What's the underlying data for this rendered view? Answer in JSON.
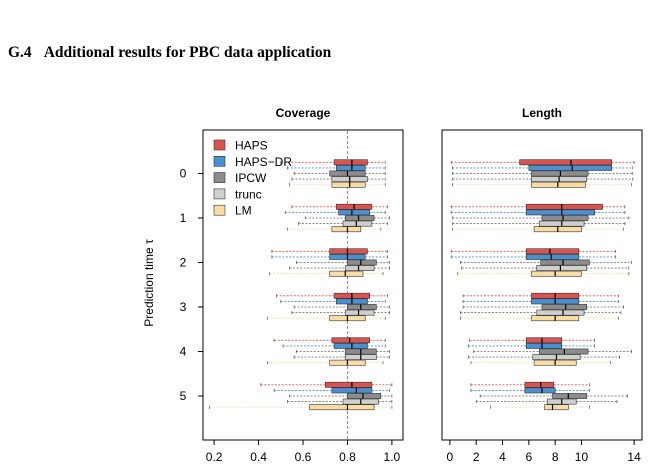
{
  "section": {
    "number": "G.4",
    "title": "Additional results for PBC data application"
  },
  "y_axis_label": "Prediction time τ",
  "colors": {
    "HAPS": "#d9534f",
    "HAPS-DR": "#4a8fcf",
    "IPCW": "#8c8c8c",
    "trunc": "#cfcfcf",
    "LM": "#f7dda3"
  },
  "chart_data": [
    {
      "type": "boxplot",
      "title": "Coverage",
      "orientation": "horizontal",
      "xlim": [
        0.15,
        1.05
      ],
      "xticks": [
        0.2,
        0.4,
        0.6,
        0.8,
        1.0
      ],
      "xtick_labels": [
        "0.2",
        "0.4",
        "0.6",
        "0.8",
        "1.0"
      ],
      "reference_line": 0.8,
      "categories": [
        "0",
        "1",
        "2",
        "3",
        "4",
        "5"
      ],
      "legend": {
        "position": "top-left",
        "entries": [
          "HAPS",
          "HAPS−DR",
          "IPCW",
          "trunc",
          "LM"
        ]
      },
      "series": [
        {
          "name": "HAPS",
          "boxes": [
            {
              "min": 0.5,
              "q1": 0.74,
              "median": 0.82,
              "q3": 0.89,
              "max": 0.97
            },
            {
              "min": 0.55,
              "q1": 0.75,
              "median": 0.83,
              "q3": 0.91,
              "max": 0.98
            },
            {
              "min": 0.46,
              "q1": 0.72,
              "median": 0.8,
              "q3": 0.89,
              "max": 0.98
            },
            {
              "min": 0.48,
              "q1": 0.74,
              "median": 0.82,
              "q3": 0.9,
              "max": 0.98
            },
            {
              "min": 0.47,
              "q1": 0.73,
              "median": 0.81,
              "q3": 0.9,
              "max": 0.97
            },
            {
              "min": 0.41,
              "q1": 0.7,
              "median": 0.82,
              "q3": 0.91,
              "max": 1.0
            }
          ]
        },
        {
          "name": "HAPS-DR",
          "boxes": [
            {
              "min": 0.53,
              "q1": 0.75,
              "median": 0.82,
              "q3": 0.88,
              "max": 0.97
            },
            {
              "min": 0.52,
              "q1": 0.76,
              "median": 0.82,
              "q3": 0.9,
              "max": 0.97
            },
            {
              "min": 0.46,
              "q1": 0.72,
              "median": 0.8,
              "q3": 0.88,
              "max": 0.98
            },
            {
              "min": 0.5,
              "q1": 0.75,
              "median": 0.82,
              "q3": 0.89,
              "max": 0.97
            },
            {
              "min": 0.51,
              "q1": 0.74,
              "median": 0.82,
              "q3": 0.89,
              "max": 0.97
            },
            {
              "min": 0.47,
              "q1": 0.73,
              "median": 0.84,
              "q3": 0.91,
              "max": 0.99
            }
          ]
        },
        {
          "name": "IPCW",
          "boxes": [
            {
              "min": 0.56,
              "q1": 0.72,
              "median": 0.8,
              "q3": 0.88,
              "max": 0.97
            },
            {
              "min": 0.61,
              "q1": 0.79,
              "median": 0.85,
              "q3": 0.92,
              "max": 0.99
            },
            {
              "min": 0.57,
              "q1": 0.8,
              "median": 0.86,
              "q3": 0.93,
              "max": 0.99
            },
            {
              "min": 0.56,
              "q1": 0.8,
              "median": 0.86,
              "q3": 0.93,
              "max": 0.99
            },
            {
              "min": 0.57,
              "q1": 0.79,
              "median": 0.86,
              "q3": 0.93,
              "max": 0.99
            },
            {
              "min": 0.54,
              "q1": 0.8,
              "median": 0.87,
              "q3": 0.95,
              "max": 1.0
            }
          ]
        },
        {
          "name": "trunc",
          "boxes": [
            {
              "min": 0.55,
              "q1": 0.73,
              "median": 0.81,
              "q3": 0.89,
              "max": 0.97
            },
            {
              "min": 0.58,
              "q1": 0.78,
              "median": 0.84,
              "q3": 0.91,
              "max": 0.98
            },
            {
              "min": 0.54,
              "q1": 0.79,
              "median": 0.85,
              "q3": 0.92,
              "max": 0.99
            },
            {
              "min": 0.55,
              "q1": 0.79,
              "median": 0.85,
              "q3": 0.92,
              "max": 0.99
            },
            {
              "min": 0.56,
              "q1": 0.79,
              "median": 0.86,
              "q3": 0.93,
              "max": 0.99
            },
            {
              "min": 0.53,
              "q1": 0.78,
              "median": 0.86,
              "q3": 0.94,
              "max": 1.0
            }
          ]
        },
        {
          "name": "LM",
          "boxes": [
            {
              "min": 0.54,
              "q1": 0.73,
              "median": 0.81,
              "q3": 0.88,
              "max": 0.97
            },
            {
              "min": 0.53,
              "q1": 0.73,
              "median": 0.8,
              "q3": 0.86,
              "max": 0.95
            },
            {
              "min": 0.45,
              "q1": 0.72,
              "median": 0.79,
              "q3": 0.87,
              "max": 0.96
            },
            {
              "min": 0.44,
              "q1": 0.72,
              "median": 0.8,
              "q3": 0.88,
              "max": 0.97
            },
            {
              "min": 0.44,
              "q1": 0.72,
              "median": 0.8,
              "q3": 0.88,
              "max": 0.96
            },
            {
              "min": 0.18,
              "q1": 0.63,
              "median": 0.8,
              "q3": 0.92,
              "max": 1.0
            }
          ]
        }
      ]
    },
    {
      "type": "boxplot",
      "title": "Length",
      "orientation": "horizontal",
      "xlim": [
        -0.6,
        14.6
      ],
      "xticks": [
        0,
        2,
        4,
        6,
        8,
        10,
        14
      ],
      "xtick_labels": [
        "0",
        "2",
        "4",
        "6",
        "8",
        "10",
        "14"
      ],
      "categories": [
        "0",
        "1",
        "2",
        "3",
        "4",
        "5"
      ],
      "series": [
        {
          "name": "HAPS",
          "boxes": [
            {
              "min": 0.1,
              "q1": 5.3,
              "median": 9.2,
              "q3": 12.3,
              "max": 14.0
            },
            {
              "min": 0.1,
              "q1": 5.8,
              "median": 8.5,
              "q3": 11.6,
              "max": 13.3
            },
            {
              "min": 0.1,
              "q1": 5.8,
              "median": 7.6,
              "q3": 9.8,
              "max": 12.6
            },
            {
              "min": 1.0,
              "q1": 6.2,
              "median": 8.0,
              "q3": 9.8,
              "max": 12.8
            },
            {
              "min": 1.5,
              "q1": 5.8,
              "median": 7.0,
              "q3": 8.5,
              "max": 11.0
            },
            {
              "min": 1.6,
              "q1": 5.7,
              "median": 6.9,
              "q3": 7.9,
              "max": 10.6
            }
          ]
        },
        {
          "name": "HAPS-DR",
          "boxes": [
            {
              "min": 0.2,
              "q1": 6.0,
              "median": 9.3,
              "q3": 12.3,
              "max": 13.9
            },
            {
              "min": 0.1,
              "q1": 5.8,
              "median": 8.5,
              "q3": 11.0,
              "max": 13.3
            },
            {
              "min": 0.1,
              "q1": 5.8,
              "median": 7.7,
              "q3": 9.8,
              "max": 12.6
            },
            {
              "min": 1.0,
              "q1": 6.2,
              "median": 8.0,
              "q3": 9.8,
              "max": 12.8
            },
            {
              "min": 1.4,
              "q1": 5.8,
              "median": 7.0,
              "q3": 8.5,
              "max": 11.0
            },
            {
              "min": 1.6,
              "q1": 5.7,
              "median": 7.0,
              "q3": 8.0,
              "max": 10.6
            }
          ]
        },
        {
          "name": "IPCW",
          "boxes": [
            {
              "min": 0.2,
              "q1": 6.2,
              "median": 8.4,
              "q3": 10.5,
              "max": 13.9
            },
            {
              "min": 0.2,
              "q1": 7.0,
              "median": 8.6,
              "q3": 10.5,
              "max": 13.6
            },
            {
              "min": 0.8,
              "q1": 6.9,
              "median": 8.6,
              "q3": 10.6,
              "max": 13.8
            },
            {
              "min": 1.0,
              "q1": 7.0,
              "median": 8.8,
              "q3": 10.4,
              "max": 13.2
            },
            {
              "min": 1.8,
              "q1": 6.8,
              "median": 8.7,
              "q3": 10.5,
              "max": 13.8
            },
            {
              "min": 2.3,
              "q1": 7.8,
              "median": 9.0,
              "q3": 10.4,
              "max": 13.5
            }
          ]
        },
        {
          "name": "trunc",
          "boxes": [
            {
              "min": 0.2,
              "q1": 6.2,
              "median": 8.3,
              "q3": 10.4,
              "max": 13.9
            },
            {
              "min": 0.2,
              "q1": 6.8,
              "median": 8.5,
              "q3": 10.2,
              "max": 13.3
            },
            {
              "min": 0.9,
              "q1": 6.6,
              "median": 8.4,
              "q3": 10.4,
              "max": 13.6
            },
            {
              "min": 0.8,
              "q1": 6.6,
              "median": 8.6,
              "q3": 10.2,
              "max": 13.0
            },
            {
              "min": 1.4,
              "q1": 6.3,
              "median": 8.1,
              "q3": 9.9,
              "max": 12.9
            },
            {
              "min": 2.0,
              "q1": 7.4,
              "median": 8.5,
              "q3": 9.6,
              "max": 12.7
            }
          ]
        },
        {
          "name": "LM",
          "boxes": [
            {
              "min": 0.2,
              "q1": 6.2,
              "median": 8.2,
              "q3": 10.3,
              "max": 13.8
            },
            {
              "min": 0.2,
              "q1": 6.4,
              "median": 8.2,
              "q3": 10.0,
              "max": 13.2
            },
            {
              "min": 0.6,
              "q1": 6.2,
              "median": 8.0,
              "q3": 10.0,
              "max": 13.6
            },
            {
              "min": 0.8,
              "q1": 6.2,
              "median": 8.0,
              "q3": 9.8,
              "max": 12.8
            },
            {
              "min": 1.6,
              "q1": 6.4,
              "median": 8.0,
              "q3": 9.6,
              "max": 12.2
            },
            {
              "min": 3.1,
              "q1": 7.2,
              "median": 7.8,
              "q3": 9.0,
              "max": 10.6
            }
          ]
        }
      ]
    }
  ]
}
